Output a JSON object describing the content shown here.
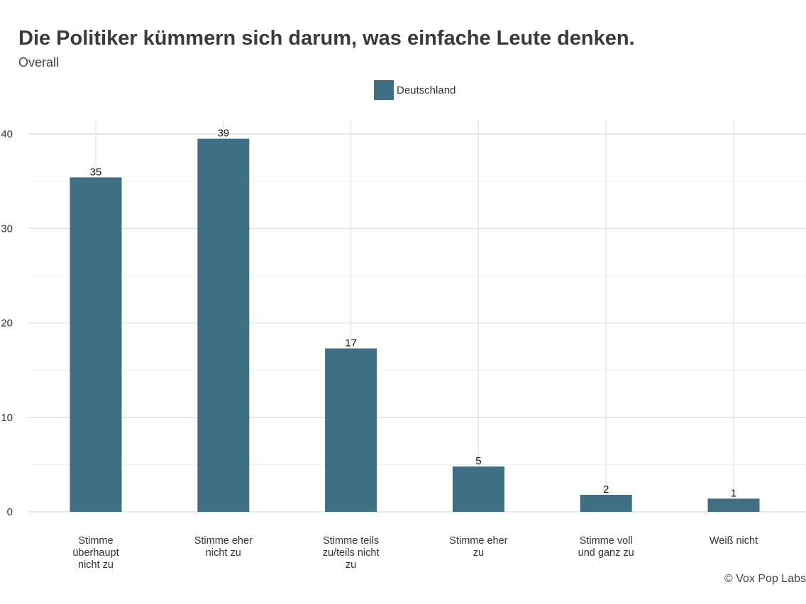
{
  "chart_data": {
    "type": "bar",
    "title": "Die Politiker kümmern sich darum, was einfache Leute denken.",
    "subtitle": "Overall",
    "categories": [
      "Stimme überhaupt nicht zu",
      "Stimme eher nicht zu",
      "Stimme teils zu/teils nicht zu",
      "Stimme eher zu",
      "Stimme voll und ganz zu",
      "Weiß nicht"
    ],
    "values": [
      35.4,
      39.5,
      17.3,
      4.8,
      1.8,
      1.4
    ],
    "value_labels": [
      "35",
      "39",
      "17",
      "5",
      "2",
      "1"
    ],
    "series_name": "Deutschland",
    "y_ticks": [
      "0",
      "10",
      "20",
      "30",
      "40"
    ],
    "ylim": [
      0,
      42
    ],
    "grid": true,
    "legend_position": "top-center",
    "xlabel": "",
    "ylabel": "",
    "bar_color": "#3e6f82",
    "credit": "© Vox Pop Labs"
  }
}
